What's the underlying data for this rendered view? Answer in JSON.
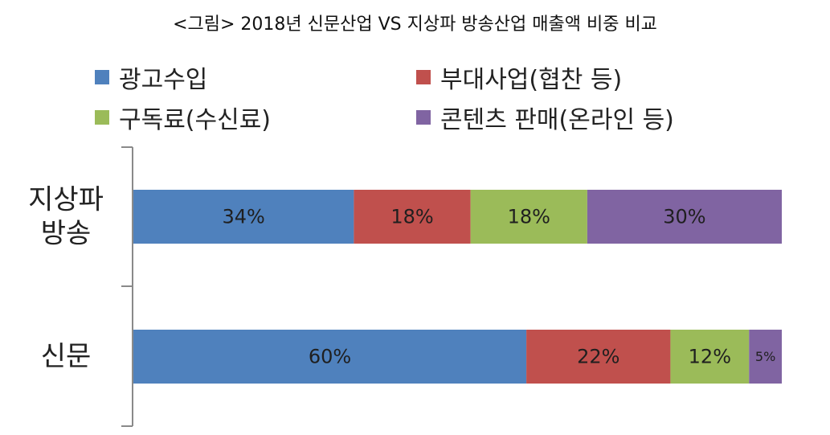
{
  "title": "<그림> 2018년 신문산업 VS 지상파 방송산업 매출액 비중 비교",
  "chart_data": {
    "type": "bar",
    "orientation": "horizontal",
    "stacked": true,
    "categories": [
      [
        "지상파",
        "방송"
      ],
      [
        "신문"
      ]
    ],
    "series": [
      {
        "name": "광고수입",
        "color": "#4F81BD",
        "values": [
          34,
          60
        ]
      },
      {
        "name": "부대사업(협찬 등)",
        "color": "#C0504D",
        "values": [
          18,
          22
        ]
      },
      {
        "name": "구독료(수신료)",
        "color": "#9BBB59",
        "values": [
          18,
          12
        ]
      },
      {
        "name": "콘텐츠 판매(온라인 등)",
        "color": "#8064A2",
        "values": [
          30,
          5
        ]
      }
    ],
    "data_labels": [
      [
        "34%",
        "18%",
        "18%",
        "30%"
      ],
      [
        "60%",
        "22%",
        "12%",
        "5%"
      ]
    ],
    "legend_position": "top",
    "grid": false
  }
}
